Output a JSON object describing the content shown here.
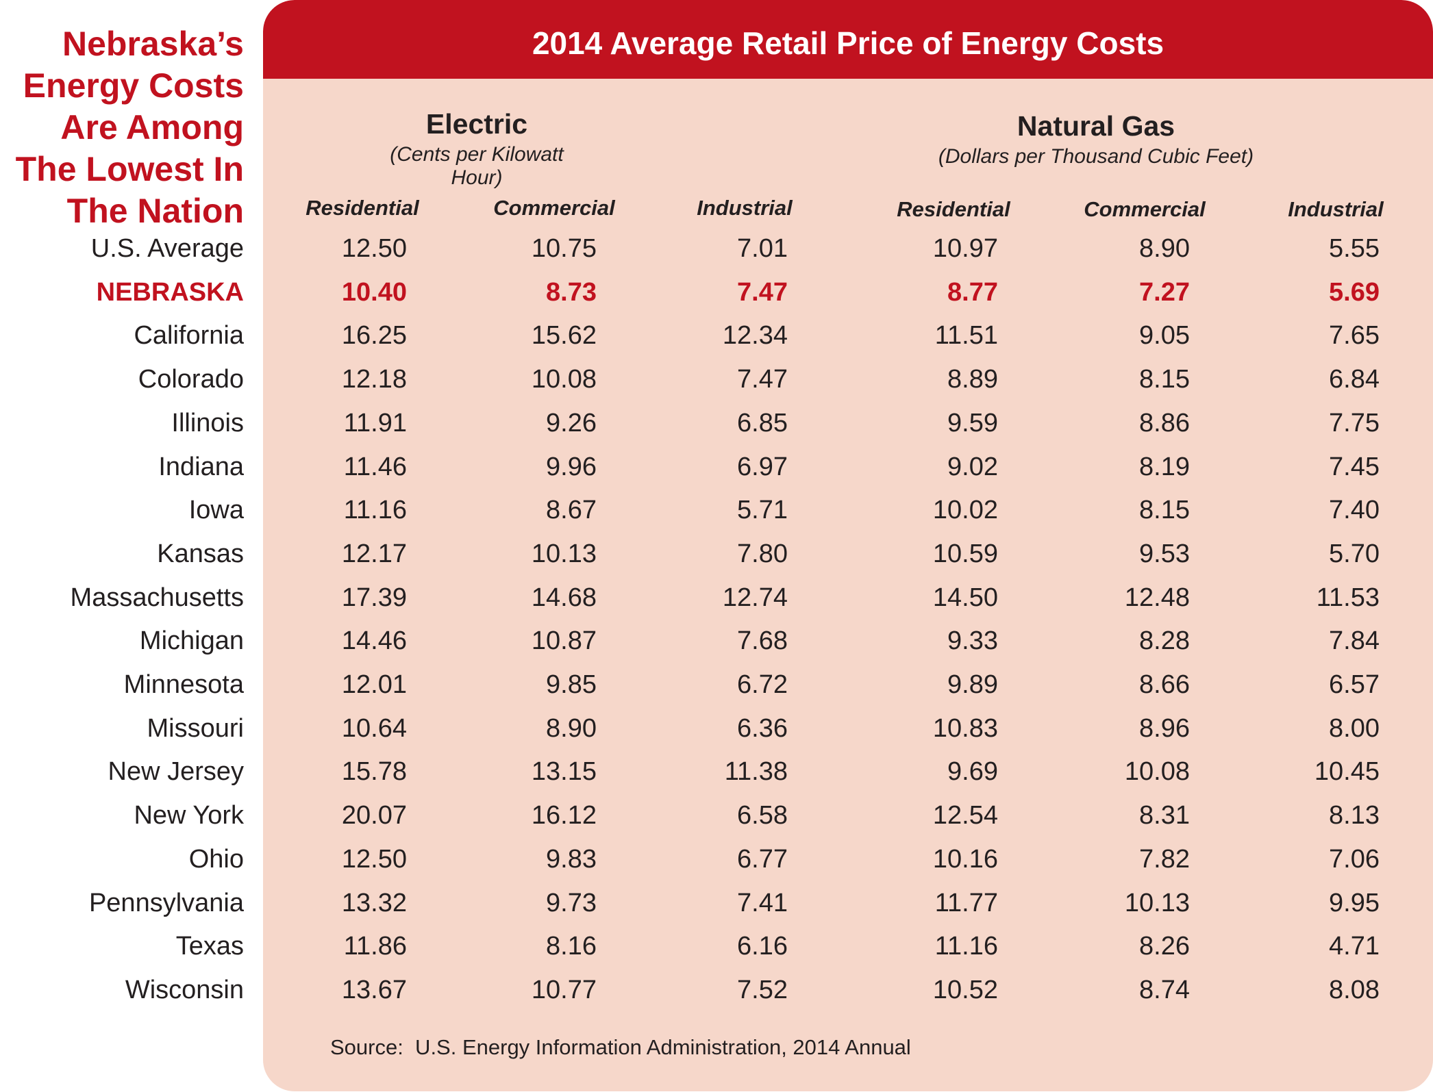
{
  "headline": [
    "Nebraska’s",
    "Energy Costs",
    "Are Among",
    "The Lowest In",
    "The Nation"
  ],
  "title": "2014 Average Retail Price of Energy Costs",
  "groups": [
    {
      "title": "Electric",
      "unit": "(Cents per Kilowatt Hour)"
    },
    {
      "title": "Natural Gas",
      "unit": "(Dollars per Thousand Cubic Feet)"
    }
  ],
  "source": "Source:  U.S. Energy Information Administration, 2014 Annual",
  "colors": {
    "accent": "#c1121f",
    "panel": "#f6d7ca",
    "text": "#231f20"
  },
  "chart_data": {
    "type": "table",
    "title": "2014 Average Retail Price of Energy Costs",
    "columns": [
      {
        "group": "Electric",
        "name": "Residential"
      },
      {
        "group": "Electric",
        "name": "Commercial"
      },
      {
        "group": "Electric",
        "name": "Industrial"
      },
      {
        "group": "Natural Gas",
        "name": "Residential"
      },
      {
        "group": "Natural Gas",
        "name": "Commercial"
      },
      {
        "group": "Natural Gas",
        "name": "Industrial"
      }
    ],
    "rows": [
      {
        "label": "U.S. Average",
        "values": [
          "12.50",
          "10.75",
          "7.01",
          "10.97",
          "8.90",
          "5.55"
        ]
      },
      {
        "label": "NEBRASKA",
        "highlight": true,
        "values": [
          "10.40",
          "8.73",
          "7.47",
          "8.77",
          "7.27",
          "5.69"
        ]
      },
      {
        "label": "California",
        "values": [
          "16.25",
          "15.62",
          "12.34",
          "11.51",
          "9.05",
          "7.65"
        ]
      },
      {
        "label": "Colorado",
        "values": [
          "12.18",
          "10.08",
          "7.47",
          "8.89",
          "8.15",
          "6.84"
        ]
      },
      {
        "label": "Illinois",
        "values": [
          "11.91",
          "9.26",
          "6.85",
          "9.59",
          "8.86",
          "7.75"
        ]
      },
      {
        "label": "Indiana",
        "values": [
          "11.46",
          "9.96",
          "6.97",
          "9.02",
          "8.19",
          "7.45"
        ]
      },
      {
        "label": "Iowa",
        "values": [
          "11.16",
          "8.67",
          "5.71",
          "10.02",
          "8.15",
          "7.40"
        ]
      },
      {
        "label": "Kansas",
        "values": [
          "12.17",
          "10.13",
          "7.80",
          "10.59",
          "9.53",
          "5.70"
        ]
      },
      {
        "label": "Massachusetts",
        "values": [
          "17.39",
          "14.68",
          "12.74",
          "14.50",
          "12.48",
          "11.53"
        ]
      },
      {
        "label": "Michigan",
        "values": [
          "14.46",
          "10.87",
          "7.68",
          "9.33",
          "8.28",
          "7.84"
        ]
      },
      {
        "label": "Minnesota",
        "values": [
          "12.01",
          "9.85",
          "6.72",
          "9.89",
          "8.66",
          "6.57"
        ]
      },
      {
        "label": "Missouri",
        "values": [
          "10.64",
          "8.90",
          "6.36",
          "10.83",
          "8.96",
          "8.00"
        ]
      },
      {
        "label": "New Jersey",
        "values": [
          "15.78",
          "13.15",
          "11.38",
          "9.69",
          "10.08",
          "10.45"
        ]
      },
      {
        "label": "New York",
        "values": [
          "20.07",
          "16.12",
          "6.58",
          "12.54",
          "8.31",
          "8.13"
        ]
      },
      {
        "label": "Ohio",
        "values": [
          "12.50",
          "9.83",
          "6.77",
          "10.16",
          "7.82",
          "7.06"
        ]
      },
      {
        "label": "Pennsylvania",
        "values": [
          "13.32",
          "9.73",
          "7.41",
          "11.77",
          "10.13",
          "9.95"
        ]
      },
      {
        "label": "Texas",
        "values": [
          "11.86",
          "8.16",
          "6.16",
          "11.16",
          "8.26",
          "4.71"
        ]
      },
      {
        "label": "Wisconsin",
        "values": [
          "13.67",
          "10.77",
          "7.52",
          "10.52",
          "8.74",
          "8.08"
        ]
      }
    ]
  }
}
